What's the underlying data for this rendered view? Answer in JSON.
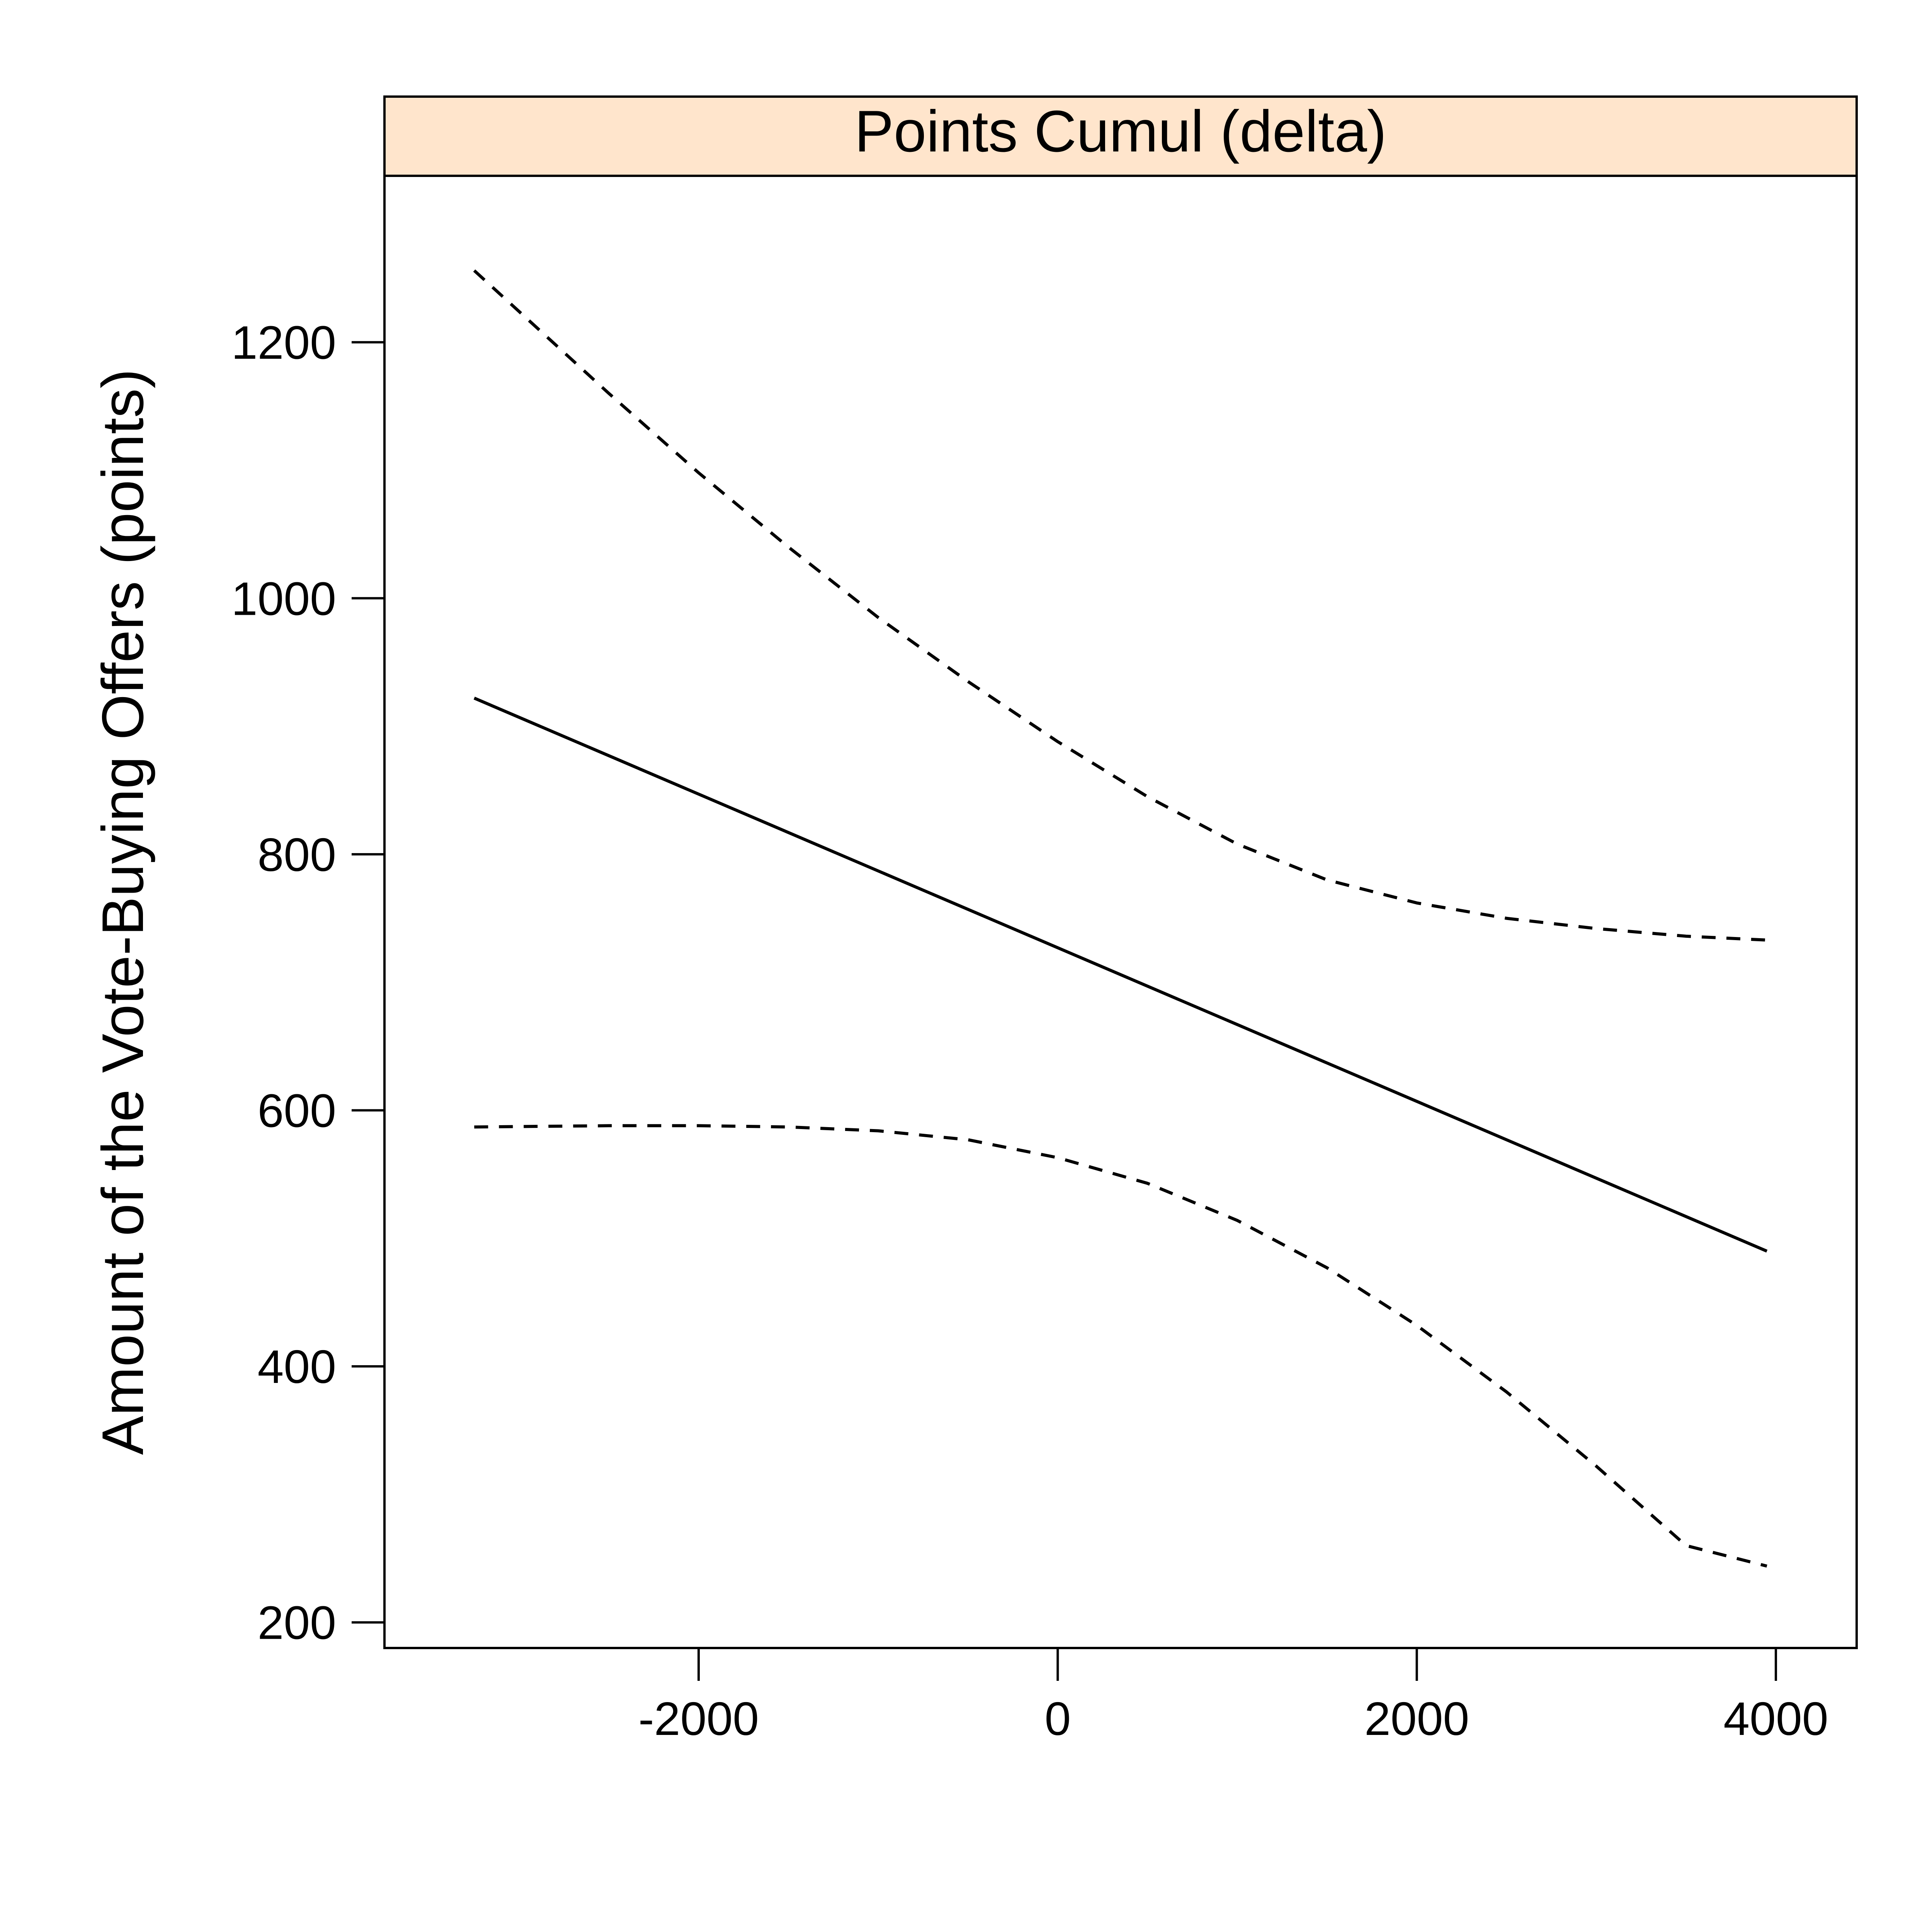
{
  "chart_data": {
    "type": "line",
    "panel_title": "Points Cumul (delta)",
    "xlabel": "",
    "ylabel": "Amount of the Vote-Buying Offers (points)",
    "xlim": [
      -3750,
      4450
    ],
    "ylim": [
      180,
      1330
    ],
    "x_ticks": [
      -2000,
      0,
      2000,
      4000
    ],
    "x_tick_labels": [
      "-2000",
      "0",
      "2000",
      "4000"
    ],
    "y_ticks": [
      200,
      400,
      600,
      800,
      1000,
      1200
    ],
    "y_tick_labels": [
      "200",
      "400",
      "600",
      "800",
      "1000",
      "1200"
    ],
    "grid": false,
    "legend": "none",
    "strip_color": "#ffe5cc",
    "series": [
      {
        "style": "solid",
        "x": [
          -3250,
          3950
        ],
        "y": [
          922,
          490
        ]
      },
      {
        "style": "dashed",
        "x": [
          -3250,
          -2500,
          -2000,
          -1500,
          -1000,
          -500,
          0,
          500,
          1000,
          1500,
          2000,
          2500,
          3000,
          3500,
          3950
        ],
        "y": [
          1256,
          1160,
          1098,
          1040,
          985,
          935,
          888,
          845,
          808,
          780,
          762,
          750,
          742,
          736,
          733
        ]
      },
      {
        "style": "dashed",
        "x": [
          -3250,
          -2500,
          -2000,
          -1500,
          -1000,
          -500,
          0,
          500,
          1000,
          1500,
          2000,
          2500,
          3000,
          3500,
          3950
        ],
        "y": [
          587,
          588,
          588,
          587,
          584,
          577,
          563,
          543,
          514,
          477,
          432,
          380,
          322,
          260,
          244
        ]
      }
    ]
  }
}
